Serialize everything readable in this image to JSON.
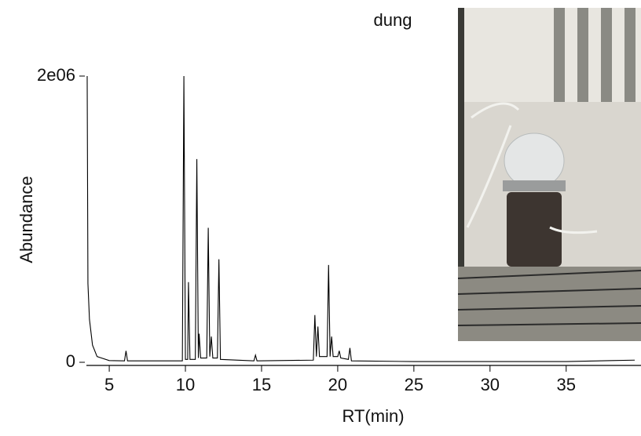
{
  "chart_data": {
    "type": "line",
    "title": "dung",
    "x_label": "RT(min)",
    "y_label": "Abundance",
    "xlim": [
      3.5,
      39.5
    ],
    "xticks": [
      5,
      10,
      15,
      20,
      25,
      30,
      35
    ],
    "ylim": [
      0,
      2000000
    ],
    "yticks": [
      0,
      {
        "value": 2000000,
        "label": "2e06"
      }
    ],
    "grid": false,
    "series": [
      {
        "color": "#000000",
        "x": [
          3.55,
          3.6,
          3.7,
          3.9,
          4.2,
          5,
          6.0,
          6.1,
          6.2,
          9.8,
          9.9,
          10.0,
          10.15,
          10.2,
          10.3,
          10.65,
          10.75,
          10.85,
          10.9,
          11.0,
          11.4,
          11.5,
          11.6,
          11.7,
          11.8,
          12.1,
          12.2,
          12.3,
          14.5,
          14.6,
          14.7,
          18.4,
          18.5,
          18.6,
          18.7,
          18.8,
          19.3,
          19.4,
          19.5,
          19.6,
          19.7,
          20.0,
          20.1,
          20.2,
          20.7,
          20.8,
          20.9,
          25,
          30,
          35,
          38,
          39.5
        ],
        "values": [
          2000000,
          550000,
          300000,
          120000,
          40000,
          12000,
          10000,
          80000,
          10000,
          10000,
          2000000,
          20000,
          20000,
          560000,
          20000,
          20000,
          1420000,
          30000,
          200000,
          30000,
          30000,
          940000,
          40000,
          180000,
          30000,
          30000,
          720000,
          20000,
          10000,
          50000,
          10000,
          15000,
          330000,
          40000,
          250000,
          40000,
          40000,
          680000,
          40000,
          180000,
          40000,
          40000,
          80000,
          30000,
          20000,
          100000,
          10000,
          5000,
          5000,
          5000,
          12000,
          15000
        ]
      }
    ]
  }
}
